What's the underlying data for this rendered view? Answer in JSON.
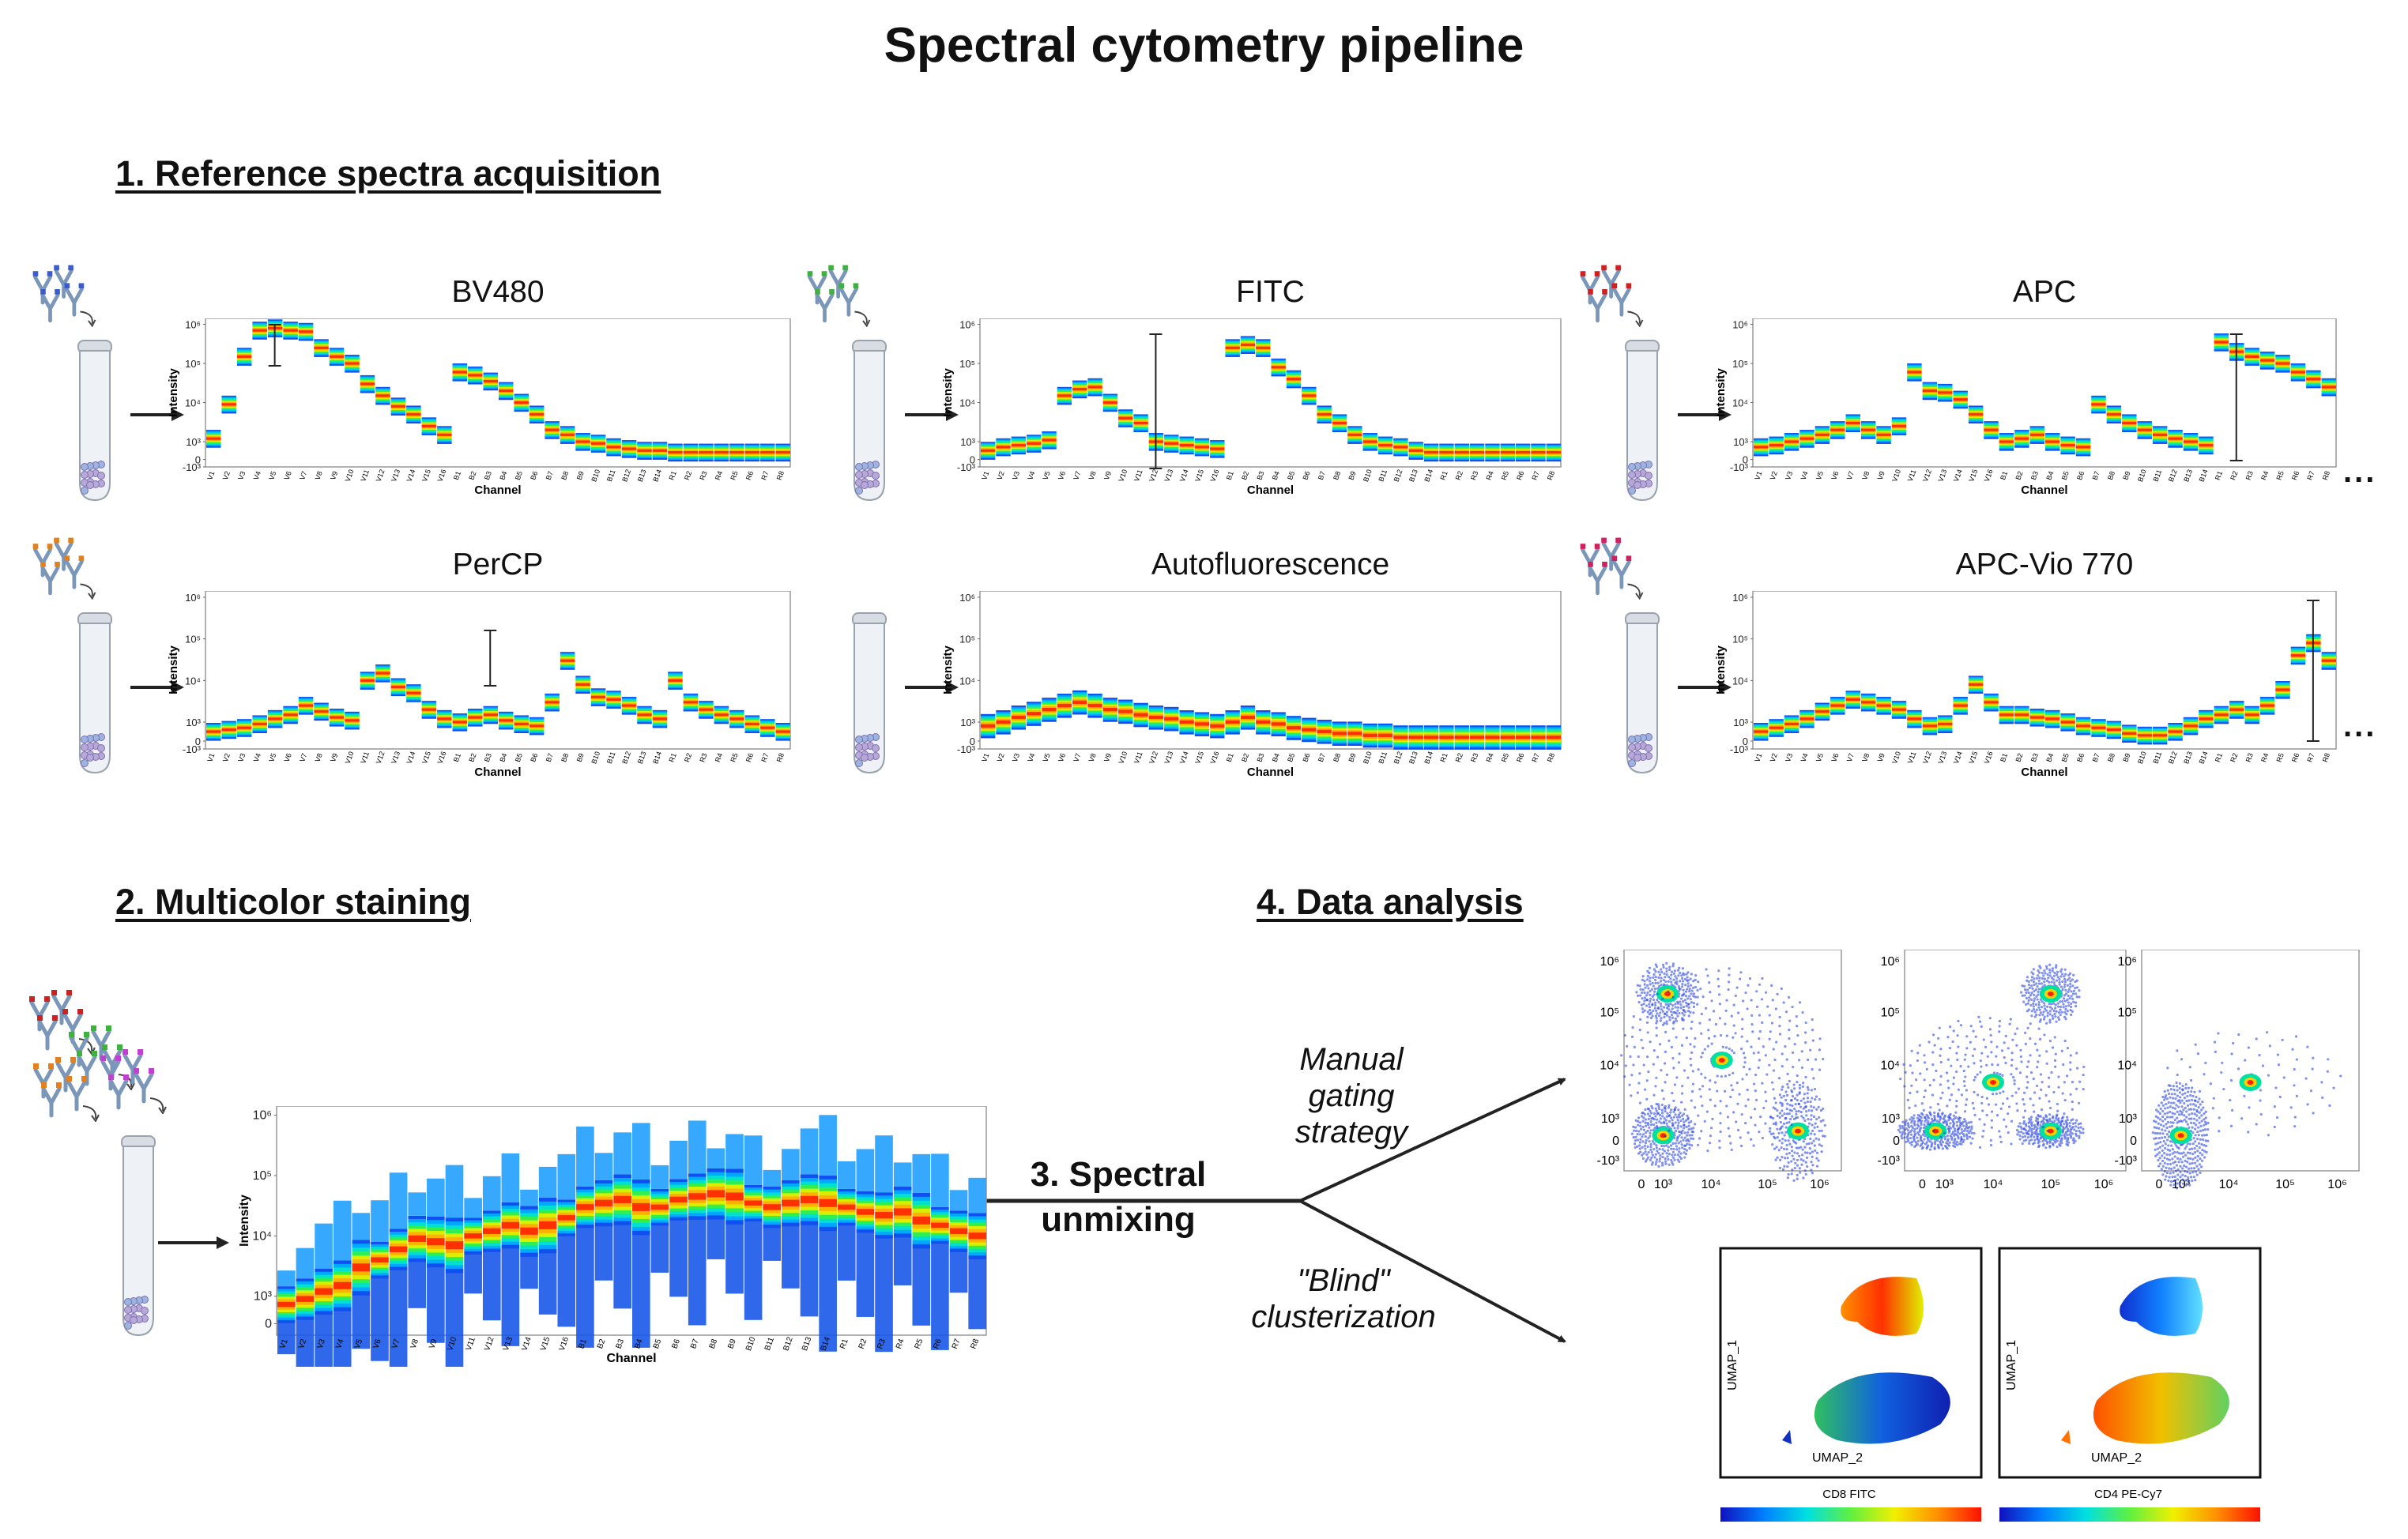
{
  "title": "Spectral cytometry pipeline",
  "sections": {
    "reference": "1. Reference spectra acquisition",
    "staining": "2. Multicolor staining",
    "unmixing": "3. Spectral unmixing",
    "analysis": "4. Data analysis"
  },
  "ellipsis": "...",
  "routes": {
    "manual": "Manual gating strategy",
    "blind": "\"Blind\" clusterization"
  },
  "axis": {
    "ylabel": "Intensity",
    "xlabel": "Channel",
    "yticks": [
      "10⁶",
      "10⁵",
      "10⁴",
      "10³",
      "0",
      "-10³"
    ],
    "channels": [
      "V1",
      "V2",
      "V3",
      "V4",
      "V5",
      "V6",
      "V7",
      "V8",
      "V9",
      "V10",
      "V11",
      "V12",
      "V13",
      "V14",
      "V15",
      "V16",
      "B1",
      "B2",
      "B3",
      "B4",
      "B5",
      "B6",
      "B7",
      "B8",
      "B9",
      "B10",
      "B11",
      "B12",
      "B13",
      "B14",
      "R1",
      "R2",
      "R3",
      "R4",
      "R5",
      "R6",
      "R7",
      "R8"
    ]
  },
  "dotplot_ticks": {
    "y": [
      "10⁶",
      "10⁵",
      "10⁴",
      "10³",
      "0",
      "-10³"
    ],
    "x": [
      "0",
      "10³",
      "10⁴",
      "10⁵",
      "10⁶"
    ]
  },
  "umap": {
    "y": "UMAP_1",
    "x": "UMAP_2",
    "colorbars": [
      "CD8  FITC",
      "CD4  PE-Cy7"
    ]
  },
  "chart_data": [
    {
      "type": "heatmap",
      "title": "BV480",
      "stained": true,
      "ylabel": "Intensity",
      "xlabel": "Channel",
      "yscale": "biexponential",
      "ylim": [
        -1000,
        1000000
      ],
      "values": [
        1200,
        9000,
        150000,
        700000,
        800000,
        700000,
        650000,
        250000,
        150000,
        100000,
        30000,
        15000,
        8000,
        5000,
        2500,
        1500,
        60000,
        50000,
        35000,
        20000,
        10000,
        5000,
        2000,
        1500,
        1000,
        900,
        700,
        600,
        500,
        500,
        400,
        400,
        400,
        400,
        400,
        400,
        400,
        400
      ]
    },
    {
      "type": "heatmap",
      "title": "FITC",
      "stained": true,
      "ylabel": "Intensity",
      "xlabel": "Channel",
      "yscale": "biexponential",
      "ylim": [
        -1000,
        1000000
      ],
      "values": [
        500,
        700,
        800,
        900,
        1100,
        15000,
        22000,
        25000,
        10000,
        4000,
        3000,
        1000,
        900,
        800,
        700,
        600,
        250000,
        300000,
        250000,
        80000,
        40000,
        15000,
        5000,
        3000,
        1500,
        1000,
        800,
        700,
        500,
        400,
        400,
        400,
        400,
        400,
        400,
        400,
        400,
        400
      ]
    },
    {
      "type": "heatmap",
      "title": "APC",
      "stained": true,
      "ylabel": "Intensity",
      "xlabel": "Channel",
      "yscale": "biexponential",
      "ylim": [
        -1000,
        1000000
      ],
      "values": [
        700,
        800,
        1000,
        1200,
        1500,
        2000,
        3000,
        2000,
        1500,
        2500,
        60000,
        20000,
        18000,
        12000,
        5000,
        2000,
        1000,
        1200,
        1500,
        1000,
        800,
        700,
        9000,
        5000,
        3000,
        2000,
        1500,
        1200,
        1000,
        800,
        350000,
        200000,
        150000,
        120000,
        100000,
        60000,
        40000,
        25000
      ]
    },
    {
      "type": "heatmap",
      "title": "PerCP",
      "stained": true,
      "ylabel": "Intensity",
      "xlabel": "Channel",
      "yscale": "biexponential",
      "ylim": [
        -1000,
        1000000
      ],
      "values": [
        500,
        600,
        700,
        900,
        1200,
        1500,
        2500,
        1800,
        1300,
        1100,
        10000,
        15000,
        7000,
        5000,
        2000,
        1200,
        1000,
        1300,
        1500,
        1100,
        900,
        800,
        3000,
        30000,
        8000,
        4000,
        3500,
        2500,
        1500,
        1200,
        10000,
        3000,
        2000,
        1500,
        1200,
        900,
        700,
        500
      ]
    },
    {
      "type": "heatmap",
      "title": "Autofluorescence",
      "stained": false,
      "ylabel": "Intensity",
      "xlabel": "Channel",
      "yscale": "biexponential",
      "ylim": [
        -1000,
        1000000
      ],
      "values": [
        800,
        1000,
        1300,
        1600,
        2000,
        2500,
        3000,
        2500,
        2000,
        1800,
        1500,
        1300,
        1200,
        1000,
        900,
        800,
        1000,
        1300,
        1000,
        900,
        700,
        600,
        500,
        400,
        400,
        300,
        300,
        200,
        200,
        200,
        200,
        200,
        200,
        200,
        200,
        200,
        200,
        200
      ]
    },
    {
      "type": "heatmap",
      "title": "APC-Vio 770",
      "stained": true,
      "ylabel": "Intensity",
      "xlabel": "Channel",
      "yscale": "biexponential",
      "ylim": [
        -1000,
        1000000
      ],
      "values": [
        500,
        700,
        900,
        1200,
        1800,
        2500,
        3500,
        3000,
        2500,
        2000,
        1200,
        800,
        900,
        2500,
        8000,
        3000,
        1500,
        1500,
        1300,
        1200,
        1000,
        800,
        700,
        600,
        400,
        300,
        300,
        500,
        800,
        1200,
        1500,
        2000,
        1500,
        2500,
        6000,
        40000,
        80000,
        30000
      ]
    },
    {
      "type": "heatmap",
      "title": "",
      "role": "multicolor",
      "ylabel": "Intensity",
      "xlabel": "Channel",
      "yscale": "biexponential",
      "ylim": [
        0,
        1000000
      ],
      "values": [
        700,
        900,
        1200,
        1500,
        3000,
        4000,
        6000,
        9000,
        8000,
        7000,
        10000,
        12000,
        15000,
        12000,
        15000,
        20000,
        30000,
        35000,
        40000,
        30000,
        30000,
        40000,
        45000,
        50000,
        45000,
        35000,
        30000,
        35000,
        40000,
        35000,
        30000,
        25000,
        22000,
        25000,
        18000,
        15000,
        12000,
        10000
      ]
    }
  ]
}
